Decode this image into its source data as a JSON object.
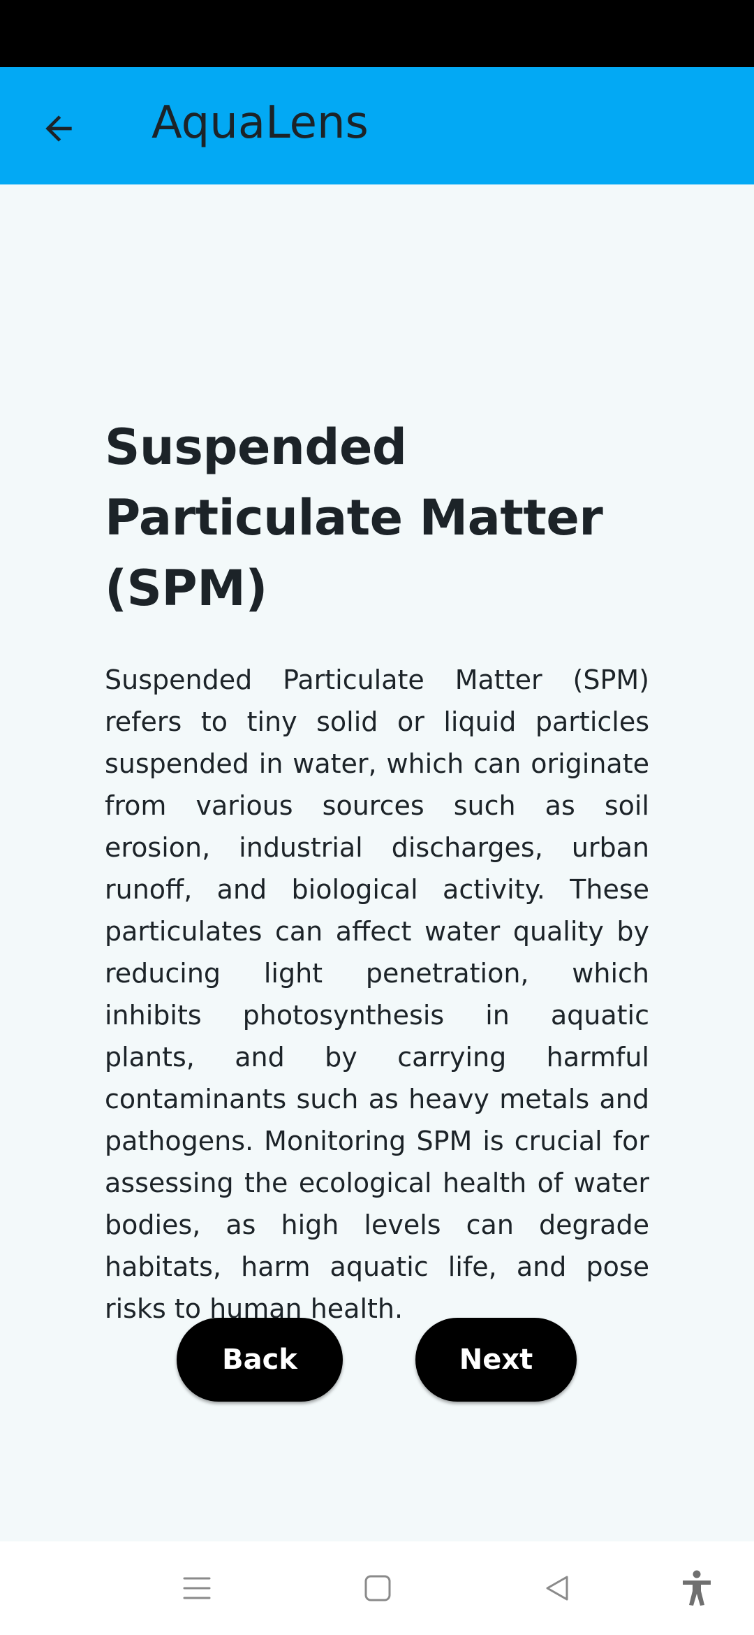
{
  "app_bar": {
    "title": "AquaLens",
    "back_icon": "arrow-left-icon",
    "color": "#03a9f4"
  },
  "content": {
    "title": "Suspended Particulate Matter (SPM)",
    "body": "Suspended Particulate Matter (SPM) refers to tiny solid or liquid particles suspended in water, which can originate from various sources such as soil erosion, industrial discharges, urban runoff, and biological activity. These particulates can affect water quality by reducing light penetration, which inhibits photosynthesis in aquatic plants, and by carrying harmful contaminants such as heavy metals and pathogens. Monitoring SPM is crucial for assessing the ecological health of water bodies, as high levels can degrade habitats, harm aquatic life, and pose risks to human health."
  },
  "buttons": {
    "back_label": "Back",
    "next_label": "Next",
    "color": "#000000"
  },
  "nav_bar": {
    "icons": [
      "menu-icon",
      "home-square-icon",
      "back-triangle-icon",
      "accessibility-icon"
    ]
  }
}
